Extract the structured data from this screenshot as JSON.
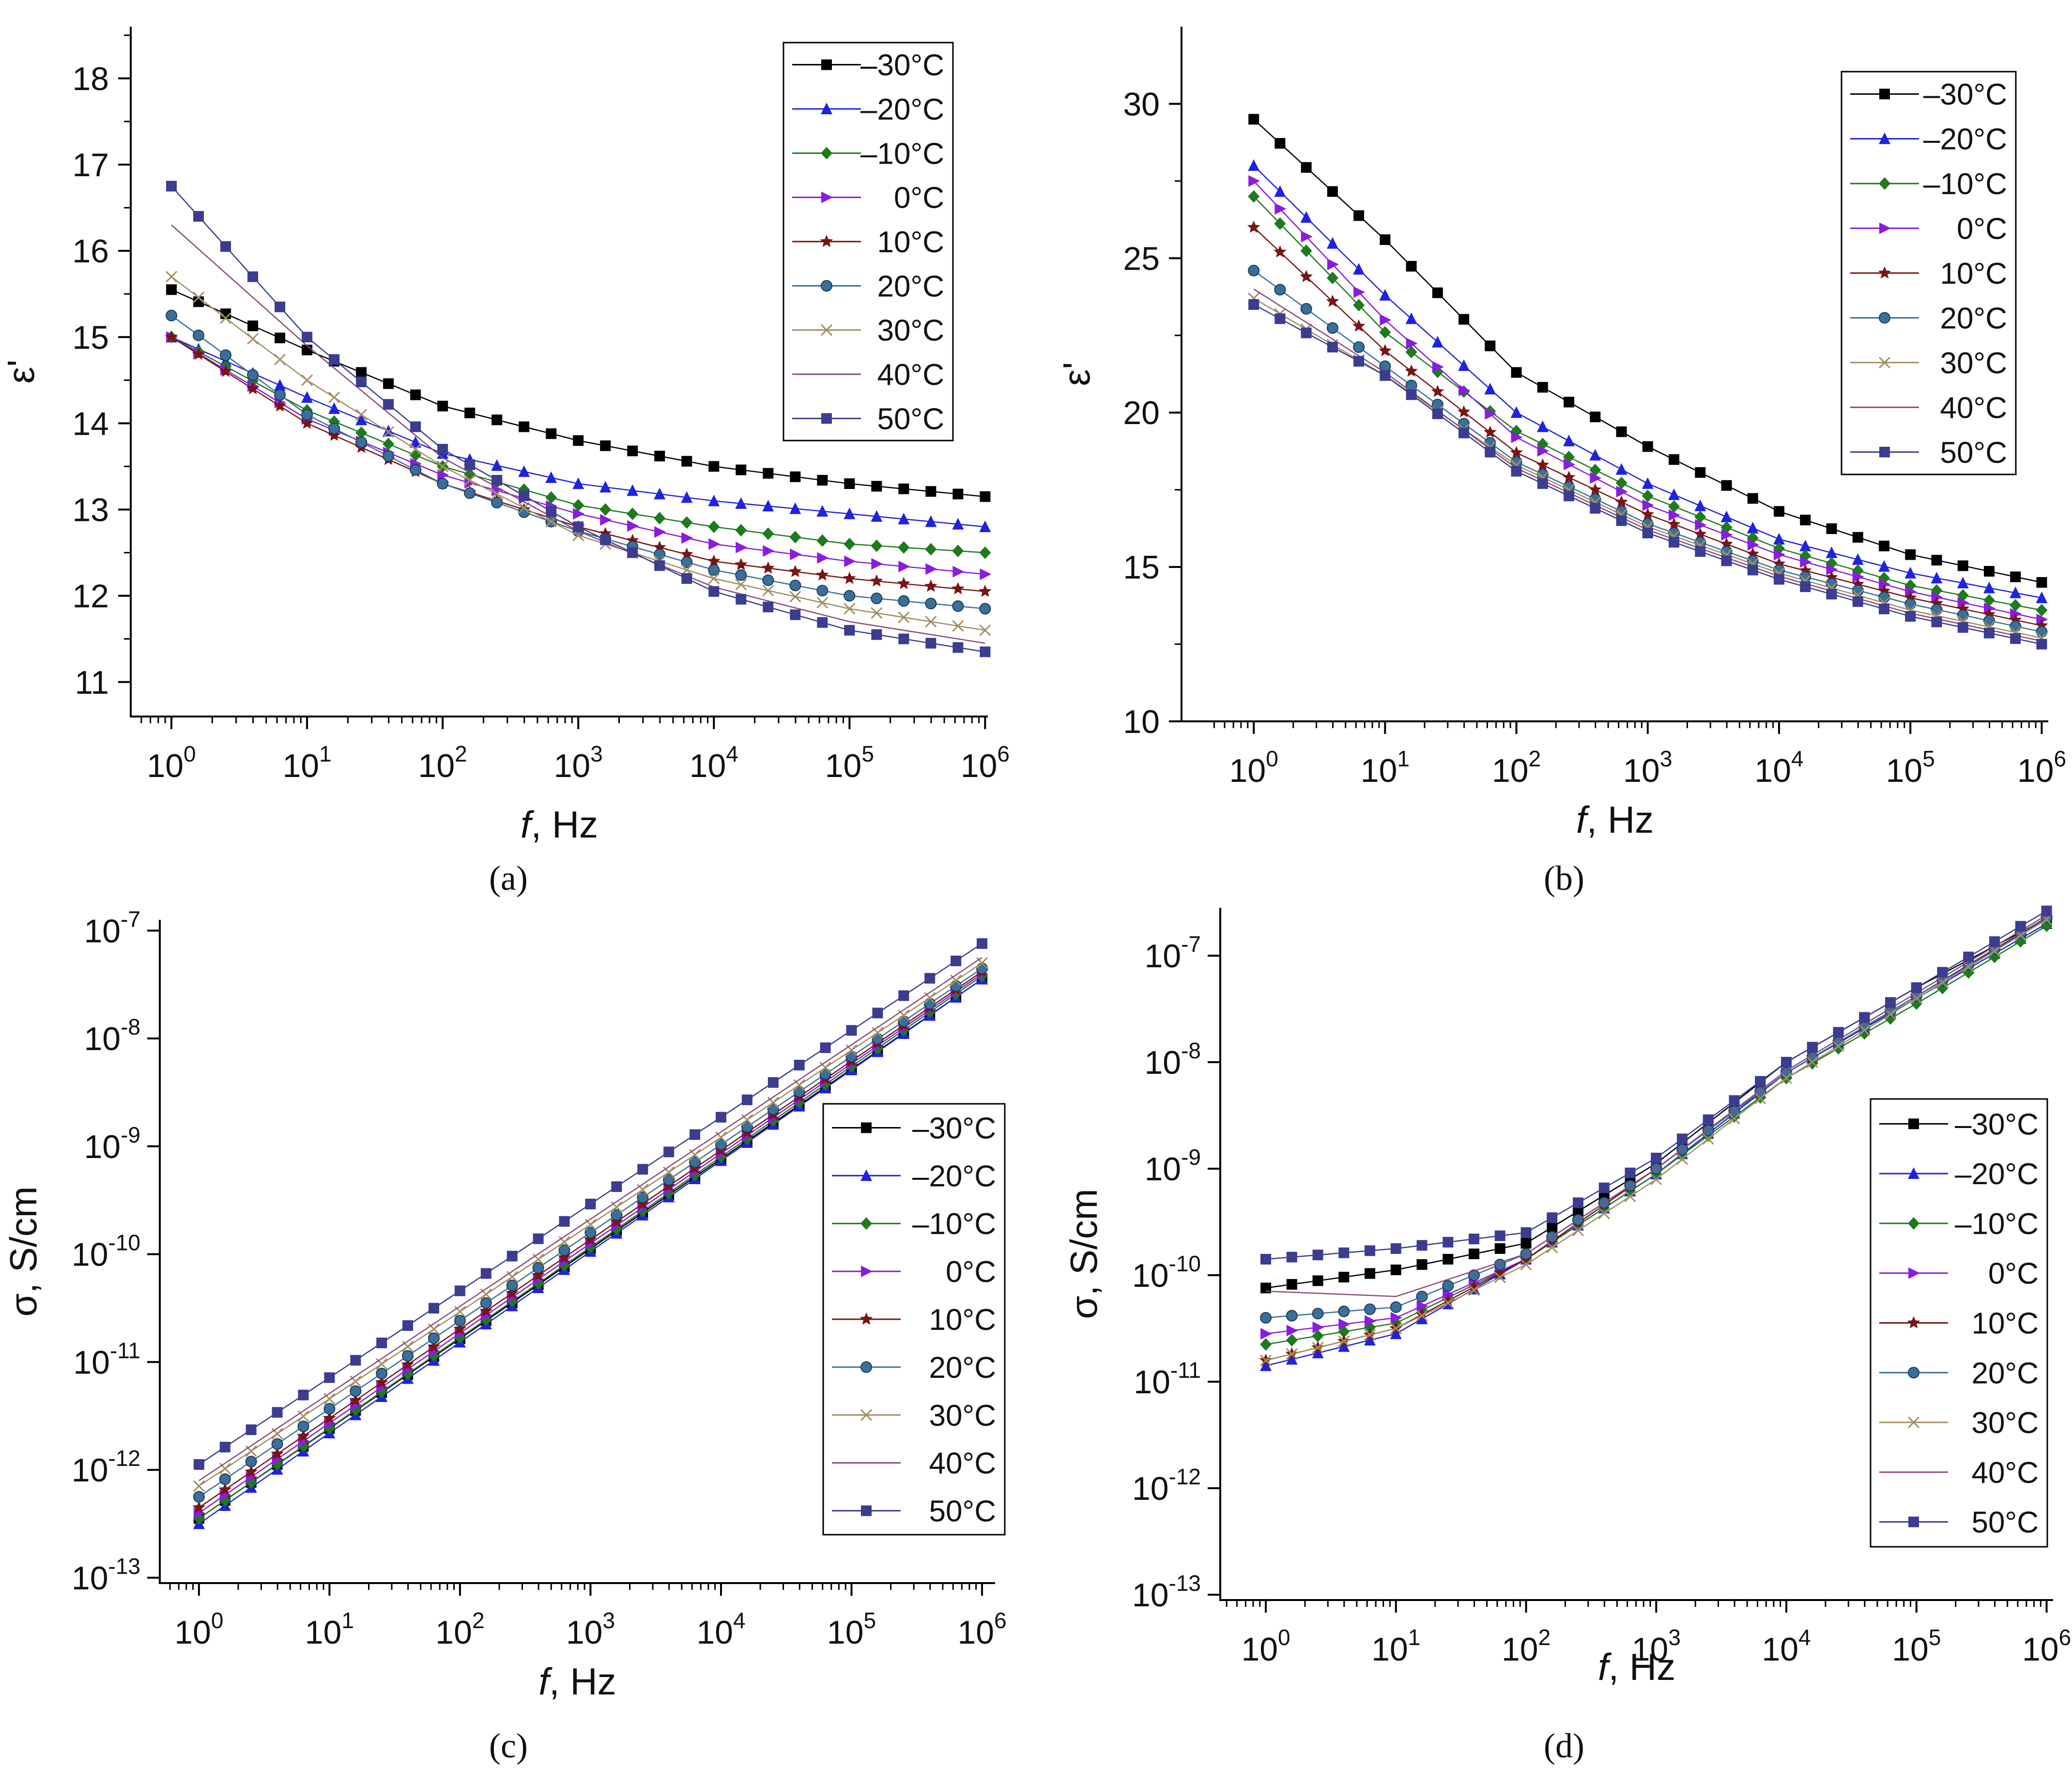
{
  "figure": {
    "panel_captions": [
      "(a)",
      "(b)",
      "(c)",
      "(d)"
    ]
  },
  "series_styles": [
    {
      "label": "–30°C",
      "color": "#000000",
      "marker": "square"
    },
    {
      "label": "–20°C",
      "color": "#1f22e0",
      "marker": "triangle-up"
    },
    {
      "label": "–10°C",
      "color": "#1d7a1d",
      "marker": "diamond"
    },
    {
      "label": "0°C",
      "color": "#8a1ce0",
      "marker": "triangle-right"
    },
    {
      "label": "10°C",
      "color": "#7a1414",
      "marker": "star"
    },
    {
      "label": "20°C",
      "color": "#3a6f9a",
      "marker": "circle"
    },
    {
      "label": "30°C",
      "color": "#a08e60",
      "marker": "x"
    },
    {
      "label": "40°C",
      "color": "#8a4b7a",
      "marker": "none"
    },
    {
      "label": "50°C",
      "color": "#3c3c90",
      "marker": "square"
    }
  ],
  "chart_data": [
    {
      "panel": "(a)",
      "type": "line",
      "xlabel_italic": "f",
      "xlabel_rest": ", Hz",
      "ylabel": "ε'",
      "xscale": "log",
      "yscale": "linear",
      "xlim_log10": [
        -0.3,
        6.02
      ],
      "ylim": [
        10.6,
        18.6
      ],
      "x_ticks_log10": [
        0,
        1,
        2,
        3,
        4,
        5,
        6
      ],
      "y_ticks": [
        11,
        12,
        13,
        14,
        15,
        16,
        17,
        18
      ],
      "legend_position": "top-right",
      "series": [
        {
          "name": "–30°C",
          "log10_f": [
            0,
            6
          ],
          "values": [
            15.55,
            13.15
          ],
          "shape": "decay"
        },
        {
          "name": "–20°C",
          "values_at_decades": [
            15.0,
            14.3,
            13.65,
            13.3,
            13.1,
            12.95,
            12.8
          ]
        },
        {
          "name": "–10°C",
          "values_at_decades": [
            15.0,
            14.15,
            13.5,
            13.05,
            12.8,
            12.6,
            12.5
          ]
        },
        {
          "name": "0°C",
          "values_at_decades": [
            15.0,
            14.05,
            13.4,
            12.95,
            12.6,
            12.4,
            12.25
          ]
        },
        {
          "name": "10°C",
          "values_at_decades": [
            15.0,
            14.0,
            13.3,
            12.8,
            12.4,
            12.2,
            12.05
          ]
        },
        {
          "name": "20°C",
          "values_at_decades": [
            15.25,
            14.1,
            13.3,
            12.75,
            12.3,
            12.0,
            11.85
          ]
        },
        {
          "name": "30°C",
          "values_at_decades": [
            15.7,
            14.5,
            13.5,
            12.7,
            12.2,
            11.85,
            11.6
          ]
        },
        {
          "name": "40°C",
          "values_at_decades": [
            16.3,
            14.9,
            13.6,
            12.75,
            12.1,
            11.7,
            11.45
          ]
        },
        {
          "name": "50°C",
          "values_at_decades": [
            16.75,
            15.0,
            13.7,
            12.8,
            12.05,
            11.6,
            11.35
          ]
        }
      ],
      "series_30_at_decades": [
        15.55,
        14.85,
        14.2,
        13.8,
        13.5,
        13.3,
        13.15
      ]
    },
    {
      "panel": "(b)",
      "type": "line",
      "xlabel_italic": "f",
      "xlabel_rest": ", Hz",
      "ylabel": "ε'",
      "xscale": "log",
      "yscale": "linear",
      "xlim_log10": [
        -0.55,
        6.05
      ],
      "ylim": [
        10,
        32.5
      ],
      "x_ticks_log10": [
        0,
        1,
        2,
        3,
        4,
        5,
        6
      ],
      "y_ticks": [
        10,
        15,
        20,
        25,
        30
      ],
      "legend_position": "top-right",
      "series": [
        {
          "name": "–30°C",
          "values_at_decades": [
            29.5,
            25.6,
            21.3,
            18.9,
            16.8,
            15.4,
            14.5
          ]
        },
        {
          "name": "–20°C",
          "values_at_decades": [
            28.0,
            23.8,
            20.0,
            17.7,
            15.9,
            14.8,
            14.0
          ]
        },
        {
          "name": "–10°C",
          "values_at_decades": [
            27.0,
            22.6,
            19.4,
            17.3,
            15.6,
            14.4,
            13.6
          ]
        },
        {
          "name": "0°C",
          "values_at_decades": [
            27.5,
            23.0,
            19.2,
            17.0,
            15.4,
            14.2,
            13.3
          ]
        },
        {
          "name": "10°C",
          "values_at_decades": [
            26.0,
            22.0,
            18.7,
            16.7,
            15.1,
            14.0,
            13.1
          ]
        },
        {
          "name": "20°C",
          "values_at_decades": [
            24.6,
            21.5,
            18.4,
            16.4,
            14.9,
            13.8,
            12.9
          ]
        },
        {
          "name": "30°C",
          "values_at_decades": [
            23.7,
            21.2,
            18.3,
            16.3,
            14.8,
            13.6,
            12.7
          ]
        },
        {
          "name": "40°C",
          "values_at_decades": [
            24.0,
            21.3,
            18.2,
            16.2,
            14.7,
            13.5,
            12.6
          ]
        },
        {
          "name": "50°C",
          "values_at_decades": [
            23.5,
            21.2,
            18.1,
            16.1,
            14.6,
            13.4,
            12.5
          ]
        }
      ]
    },
    {
      "panel": "(c)",
      "type": "line",
      "xlabel_italic": "f",
      "xlabel_rest": ", Hz",
      "ylabel": "σ, S/cm",
      "xscale": "log",
      "yscale": "log",
      "xlim_log10": [
        -0.3,
        6.1
      ],
      "ylim_log10": [
        -13.05,
        -6.9
      ],
      "x_ticks_log10": [
        0,
        1,
        2,
        3,
        4,
        5,
        6
      ],
      "y_ticks_log10": [
        -13,
        -12,
        -11,
        -10,
        -9,
        -8,
        -7
      ],
      "legend_position": "lower-right",
      "series": [
        {
          "name": "–30°C",
          "log10_sigma_at_f1": -12.45,
          "log10_sigma_at_f1e6": -7.45
        },
        {
          "name": "–20°C",
          "log10_sigma_at_f1": -12.5,
          "log10_sigma_at_f1e6": -7.45
        },
        {
          "name": "–10°C",
          "log10_sigma_at_f1": -12.45,
          "log10_sigma_at_f1e6": -7.42
        },
        {
          "name": "0°C",
          "log10_sigma_at_f1": -12.4,
          "log10_sigma_at_f1e6": -7.4
        },
        {
          "name": "10°C",
          "log10_sigma_at_f1": -12.35,
          "log10_sigma_at_f1e6": -7.38
        },
        {
          "name": "20°C",
          "log10_sigma_at_f1": -12.25,
          "log10_sigma_at_f1e6": -7.35
        },
        {
          "name": "30°C",
          "log10_sigma_at_f1": -12.15,
          "log10_sigma_at_f1e6": -7.3
        },
        {
          "name": "40°C",
          "log10_sigma_at_f1": -12.1,
          "log10_sigma_at_f1e6": -7.25
        },
        {
          "name": "50°C",
          "log10_sigma_at_f1": -11.95,
          "log10_sigma_at_f1e6": -7.12
        }
      ]
    },
    {
      "panel": "(d)",
      "type": "line",
      "xlabel_italic": "f",
      "xlabel_rest": ", Hz",
      "ylabel": "σ, S/cm",
      "xscale": "log",
      "yscale": "log",
      "xlim_log10": [
        -0.35,
        6.05
      ],
      "ylim_log10": [
        -13.05,
        -6.55
      ],
      "x_ticks_log10": [
        0,
        1,
        2,
        3,
        4,
        5,
        6
      ],
      "y_ticks_log10": [
        -13,
        -12,
        -11,
        -10,
        -9,
        -8,
        -7
      ],
      "legend_position": "right",
      "series": [
        {
          "name": "–30°C",
          "log10_sigma_at_decades": [
            -10.12,
            -9.95,
            -9.7,
            -8.95,
            -8.0,
            -7.3,
            -6.65
          ]
        },
        {
          "name": "–20°C",
          "log10_sigma_at_decades": [
            -10.85,
            -10.55,
            -9.85,
            -9.05,
            -8.1,
            -7.4,
            -6.7
          ]
        },
        {
          "name": "–10°C",
          "log10_sigma_at_decades": [
            -10.65,
            -10.45,
            -9.85,
            -9.05,
            -8.15,
            -7.45,
            -6.72
          ]
        },
        {
          "name": "0°C",
          "log10_sigma_at_decades": [
            -10.55,
            -10.4,
            -9.85,
            -9.0,
            -8.1,
            -7.38,
            -6.66
          ]
        },
        {
          "name": "10°C",
          "log10_sigma_at_decades": [
            -10.8,
            -10.5,
            -9.85,
            -9.0,
            -8.1,
            -7.38,
            -6.65
          ]
        },
        {
          "name": "20°C",
          "log10_sigma_at_decades": [
            -10.4,
            -10.3,
            -9.8,
            -9.0,
            -8.1,
            -7.38,
            -6.64
          ]
        },
        {
          "name": "30°C",
          "log10_sigma_at_decades": [
            -10.8,
            -10.5,
            -9.9,
            -9.1,
            -8.15,
            -7.4,
            -6.66
          ]
        },
        {
          "name": "40°C",
          "log10_sigma_at_decades": [
            -10.15,
            -10.2,
            -9.8,
            -9.0,
            -8.08,
            -7.35,
            -6.62
          ]
        },
        {
          "name": "50°C",
          "log10_sigma_at_decades": [
            -9.85,
            -9.75,
            -9.6,
            -8.9,
            -8.0,
            -7.3,
            -6.58
          ]
        }
      ]
    }
  ]
}
